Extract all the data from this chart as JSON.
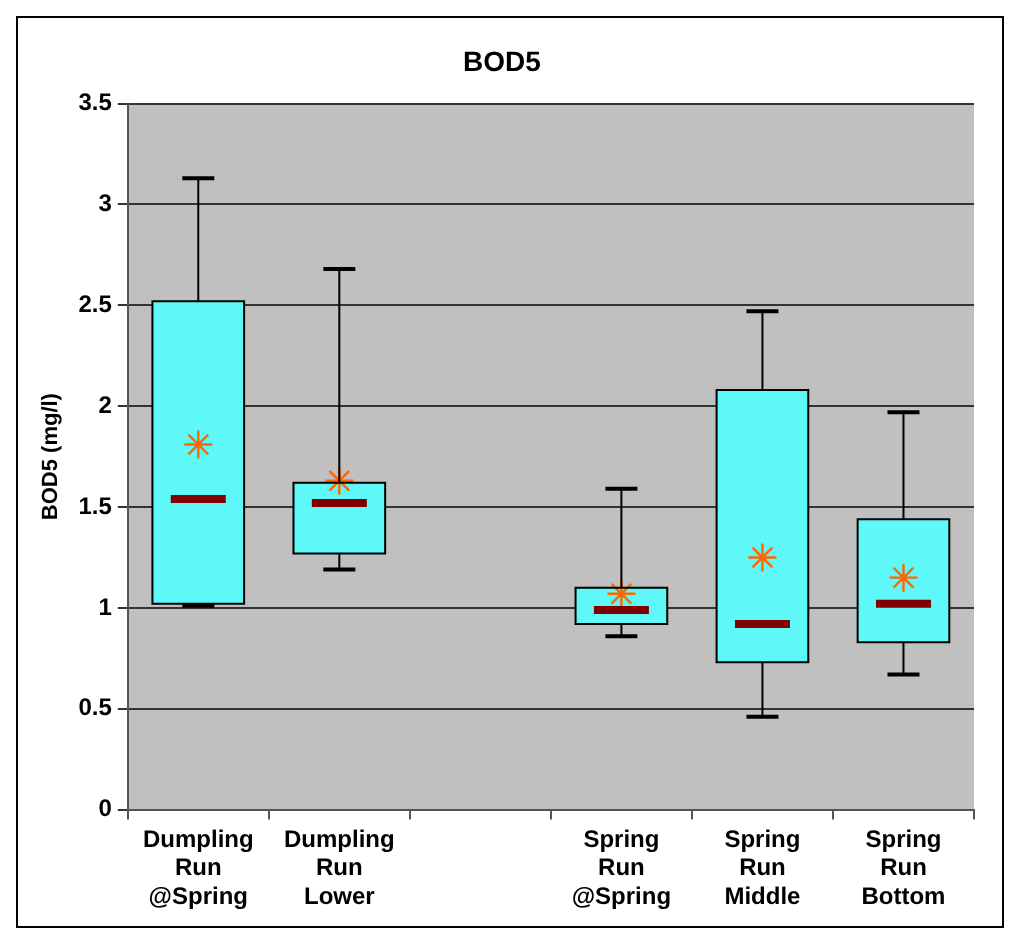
{
  "chart_data": {
    "type": "box",
    "title": "BOD5",
    "ylabel": "BOD5 (mg/l)",
    "categories": [
      "Dumpling Run @Spring",
      "Dumpling Run Lower",
      null,
      "Spring Run @Spring",
      "Spring Run Middle",
      "Spring Run Bottom"
    ],
    "color": "#5ff8f8",
    "boxes": [
      {
        "low": 1.01,
        "q1": 1.02,
        "median": 1.54,
        "q3": 2.52,
        "high": 3.13,
        "mean": 1.81
      },
      {
        "low": 1.19,
        "q1": 1.27,
        "median": 1.52,
        "q3": 1.62,
        "high": 2.68,
        "mean": 1.63
      },
      null,
      {
        "low": 0.86,
        "q1": 0.92,
        "median": 0.99,
        "q3": 1.1,
        "high": 1.59,
        "mean": 1.07
      },
      {
        "low": 0.46,
        "q1": 0.73,
        "median": 0.92,
        "q3": 2.08,
        "high": 2.47,
        "mean": 1.25
      },
      {
        "low": 0.67,
        "q1": 0.83,
        "median": 1.02,
        "q3": 1.44,
        "high": 1.97,
        "mean": 1.15
      }
    ],
    "ylim": [
      0,
      3.5
    ],
    "yticks": [
      0,
      0.5,
      1,
      1.5,
      2,
      2.5,
      3,
      3.5
    ],
    "grid": "y",
    "legend": false
  }
}
